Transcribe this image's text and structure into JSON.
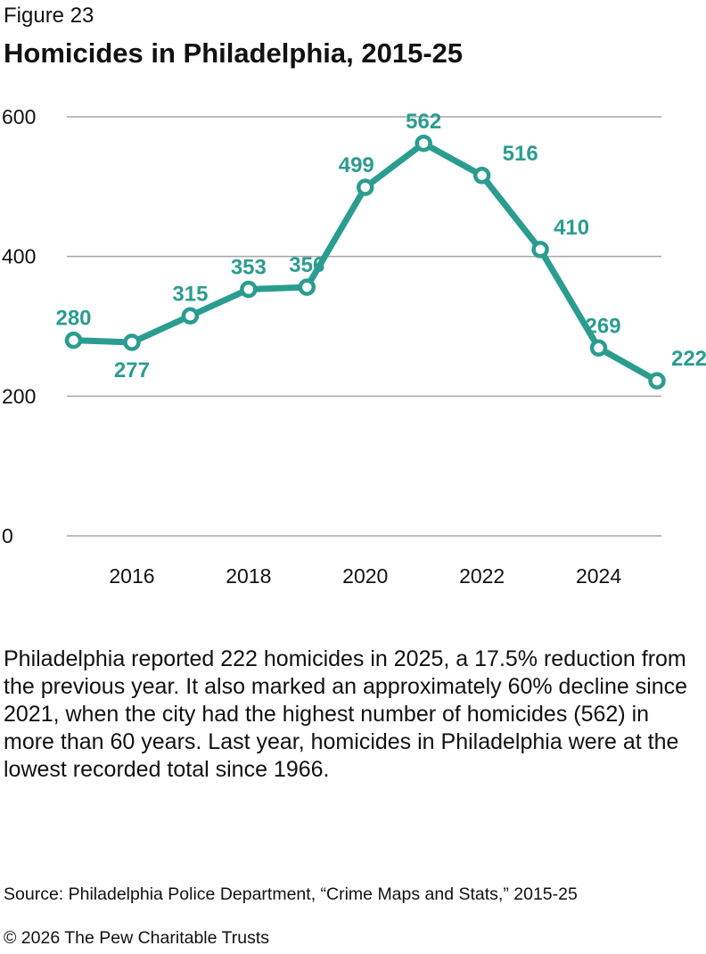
{
  "figure_label": "Figure 23",
  "chart_data": {
    "type": "line",
    "title": "Homicides in Philadelphia, 2015-25",
    "xlabel": "",
    "ylabel": "",
    "x": [
      2015,
      2016,
      2017,
      2018,
      2019,
      2020,
      2021,
      2022,
      2023,
      2024,
      2025
    ],
    "values": [
      280,
      277,
      315,
      353,
      356,
      499,
      562,
      516,
      410,
      269,
      222
    ],
    "x_ticks": [
      "2016",
      "2018",
      "2020",
      "2022",
      "2024"
    ],
    "y_ticks": [
      "0",
      "200",
      "400",
      "600"
    ],
    "ylim": [
      0,
      600
    ],
    "grid": true,
    "color": "#2a9d90"
  },
  "description": "Philadelphia reported 222 homicides in 2025, a 17.5% reduction from the previous year. It also marked an approximately 60% decline since 2021, when the city had the highest number of homicides (562) in more than 60 years. Last year, homicides in Philadelphia were at the lowest recorded total since 1966.",
  "source": "Source: Philadelphia Police Department, “Crime Maps and Stats,” 2015-25",
  "copyright": "© 2026 The Pew Charitable Trusts"
}
